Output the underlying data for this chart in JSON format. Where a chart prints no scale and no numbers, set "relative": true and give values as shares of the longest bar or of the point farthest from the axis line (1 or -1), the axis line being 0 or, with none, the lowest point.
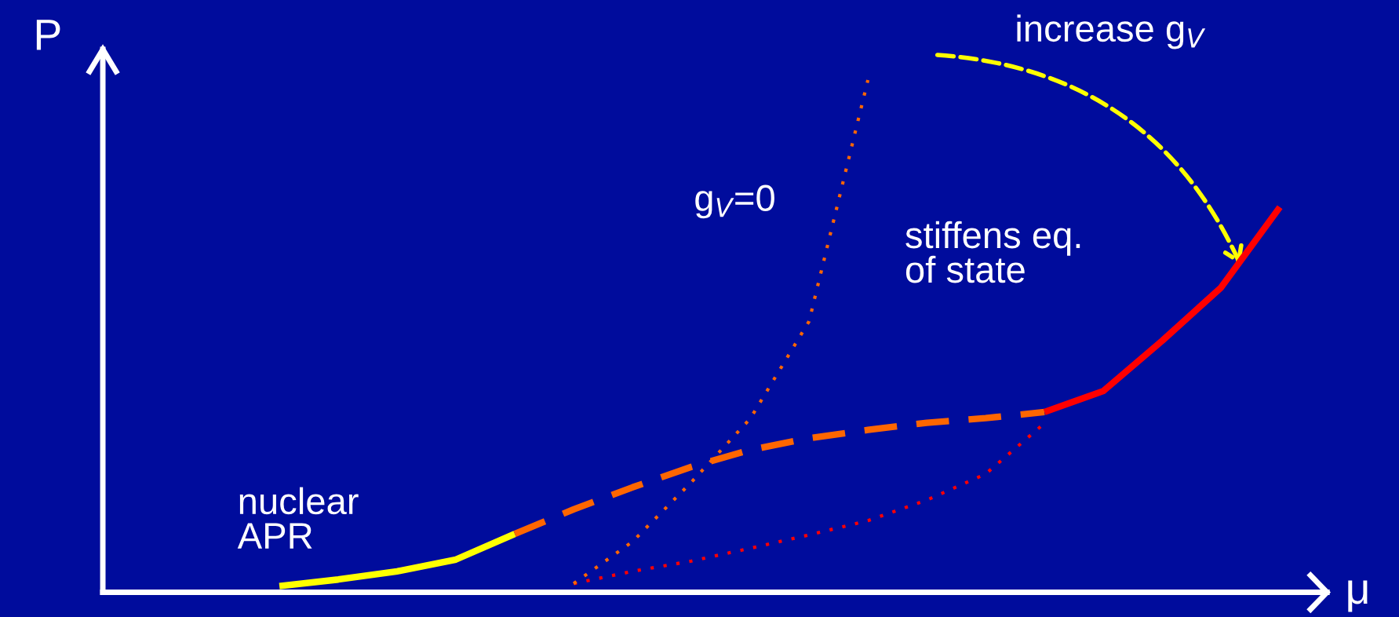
{
  "chart_data": {
    "type": "line",
    "relative": true,
    "xlabel": "μ",
    "ylabel": "P",
    "categories": [
      null,
      null,
      null,
      null,
      null,
      null,
      null,
      null,
      null,
      null,
      null,
      null,
      null,
      null,
      null,
      null,
      null,
      null,
      null,
      null,
      null
    ],
    "series": [
      {
        "color": "#ffff00",
        "line_style": "solid",
        "values": [
          null,
          null,
          null,
          0.012,
          0.025,
          0.041,
          0.064,
          0.114,
          null,
          null,
          null,
          null,
          null,
          null,
          null,
          null,
          null,
          null,
          null,
          null,
          null
        ]
      },
      {
        "color": "#ff6600",
        "line_style": "dashed",
        "values": [
          null,
          null,
          null,
          null,
          null,
          null,
          null,
          0.114,
          0.162,
          0.205,
          0.245,
          0.278,
          0.301,
          0.317,
          0.331,
          0.34,
          0.352,
          null,
          null,
          null,
          null
        ]
      },
      {
        "color": "#ff0000",
        "line_style": "solid",
        "values": [
          null,
          null,
          null,
          null,
          null,
          null,
          null,
          null,
          null,
          null,
          null,
          null,
          null,
          null,
          null,
          null,
          0.352,
          0.393,
          0.491,
          0.595,
          0.752
        ]
      },
      {
        "color": "#ff0000",
        "line_style": "dotted",
        "values": [
          null,
          null,
          null,
          null,
          null,
          null,
          null,
          null,
          0.017,
          0.041,
          0.061,
          0.086,
          0.112,
          0.14,
          0.18,
          0.231,
          0.33,
          null,
          null,
          null,
          null
        ]
      },
      {
        "color": "#ff6600",
        "line_style": "dotted",
        "values": [
          null,
          null,
          null,
          null,
          null,
          null,
          null,
          null,
          0.017,
          0.099,
          0.215,
          0.339,
          0.529,
          1.0,
          null,
          null,
          null,
          null,
          null,
          null,
          null
        ]
      }
    ],
    "annotations": [
      "nuclear\nAPR",
      "g$_{V}$=0",
      "stiffens eq.\nof state",
      "increase g$_{V}$"
    ],
    "marker": "none",
    "legend": false
  }
}
